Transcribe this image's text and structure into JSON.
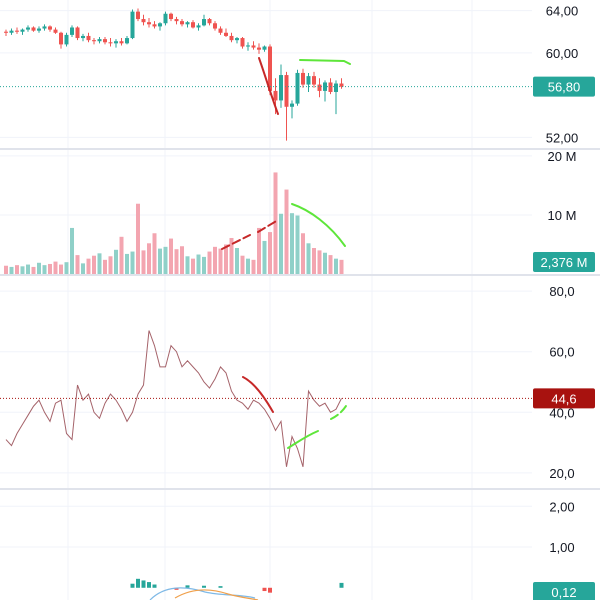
{
  "colors": {
    "up": "#26a69a",
    "down": "#ef5350",
    "up_soft": "#8fd0c8",
    "down_soft": "#f3a5b0",
    "grid": "#f0f3fa",
    "separator": "#e0e3eb",
    "rsi_line": "#a5636a",
    "annotation_red": "#c62828",
    "annotation_green": "#5ee63a",
    "price_badge": "#26a69a",
    "rsi_badge": "#a8120f",
    "macd_badge": "#26a69a"
  },
  "chart_data": [
    {
      "type": "candlestick",
      "yticks": [
        "64,00",
        "60,00",
        "52,00"
      ],
      "ylim": [
        51,
        65
      ],
      "last_value_label": "56,80",
      "last_value": 56.8,
      "candles": [
        [
          62.0,
          62.2,
          61.6,
          61.9
        ],
        [
          61.9,
          62.3,
          61.7,
          62.1
        ],
        [
          62.1,
          62.4,
          61.8,
          62.0
        ],
        [
          62.0,
          62.3,
          61.7,
          62.2
        ],
        [
          62.2,
          62.6,
          62.0,
          62.4
        ],
        [
          62.4,
          62.5,
          62.0,
          62.1
        ],
        [
          62.1,
          62.5,
          61.9,
          62.3
        ],
        [
          62.3,
          62.7,
          62.1,
          62.5
        ],
        [
          62.5,
          62.6,
          62.0,
          62.2
        ],
        [
          62.2,
          62.4,
          61.8,
          61.9
        ],
        [
          61.9,
          62.0,
          60.4,
          60.8
        ],
        [
          60.8,
          61.9,
          60.6,
          61.7
        ],
        [
          61.7,
          62.6,
          61.5,
          62.4
        ],
        [
          62.4,
          62.5,
          61.2,
          61.4
        ],
        [
          61.4,
          61.8,
          61.1,
          61.6
        ],
        [
          61.6,
          61.9,
          61.0,
          61.2
        ],
        [
          61.2,
          61.4,
          60.8,
          61.1
        ],
        [
          61.1,
          61.5,
          60.9,
          61.3
        ],
        [
          61.3,
          61.5,
          60.8,
          61.0
        ],
        [
          61.0,
          61.4,
          60.6,
          60.9
        ],
        [
          60.9,
          61.3,
          60.5,
          61.1
        ],
        [
          61.1,
          61.4,
          60.7,
          60.9
        ],
        [
          60.9,
          61.6,
          60.8,
          61.4
        ],
        [
          61.4,
          64.1,
          61.3,
          63.9
        ],
        [
          63.9,
          64.2,
          63.0,
          63.2
        ],
        [
          63.2,
          63.6,
          62.6,
          62.9
        ],
        [
          62.9,
          63.3,
          62.4,
          62.7
        ],
        [
          62.7,
          63.0,
          62.3,
          62.5
        ],
        [
          62.5,
          62.9,
          62.1,
          62.8
        ],
        [
          62.8,
          63.9,
          62.6,
          63.7
        ],
        [
          63.7,
          63.8,
          63.0,
          63.2
        ],
        [
          63.2,
          63.4,
          62.7,
          63.0
        ],
        [
          63.0,
          63.2,
          62.5,
          62.7
        ],
        [
          62.7,
          63.0,
          62.4,
          62.9
        ],
        [
          62.9,
          63.1,
          62.3,
          62.4
        ],
        [
          62.4,
          62.8,
          62.1,
          62.6
        ],
        [
          62.6,
          63.6,
          62.5,
          63.2
        ],
        [
          63.2,
          63.3,
          62.6,
          62.8
        ],
        [
          62.8,
          63.0,
          62.1,
          62.3
        ],
        [
          62.3,
          62.5,
          61.7,
          61.9
        ],
        [
          61.9,
          62.3,
          61.5,
          61.6
        ],
        [
          61.6,
          61.9,
          61.0,
          61.2
        ],
        [
          61.2,
          61.5,
          60.9,
          61.4
        ],
        [
          61.4,
          61.5,
          60.4,
          60.6
        ],
        [
          60.6,
          61.0,
          60.2,
          60.7
        ],
        [
          60.7,
          61.1,
          60.3,
          60.5
        ],
        [
          60.5,
          60.9,
          59.9,
          60.3
        ],
        [
          60.3,
          60.7,
          60.1,
          60.6
        ],
        [
          60.6,
          60.8,
          56.0,
          56.4
        ],
        [
          56.4,
          57.6,
          54.2,
          55.5
        ],
        [
          55.5,
          58.9,
          54.8,
          57.9
        ],
        [
          57.9,
          58.2,
          51.7,
          54.9
        ],
        [
          54.9,
          55.5,
          53.8,
          55.2
        ],
        [
          55.2,
          58.4,
          55.0,
          58.1
        ],
        [
          58.1,
          58.5,
          56.7,
          57.0
        ],
        [
          57.0,
          58.1,
          56.3,
          57.8
        ],
        [
          57.8,
          58.2,
          56.7,
          57.0
        ],
        [
          57.0,
          57.6,
          55.8,
          56.4
        ],
        [
          56.4,
          57.4,
          55.4,
          57.2
        ],
        [
          57.2,
          57.6,
          56.1,
          56.3
        ],
        [
          56.3,
          57.4,
          54.2,
          57.1
        ],
        [
          57.1,
          57.6,
          56.6,
          56.8
        ]
      ]
    },
    {
      "type": "bar",
      "yticks": [
        "20 M",
        "10 M"
      ],
      "ylim": [
        0,
        21
      ],
      "last_value_label": "2,376 M",
      "values": [
        1.4,
        1.2,
        1.5,
        1.3,
        1.6,
        1.2,
        1.9,
        1.5,
        1.7,
        2.1,
        1.6,
        2.0,
        7.8,
        3.2,
        1.8,
        2.6,
        3.1,
        3.5,
        2.4,
        3.0,
        4.1,
        6.3,
        3.4,
        3.8,
        11.9,
        4.0,
        5.2,
        6.9,
        4.3,
        4.6,
        6.0,
        4.2,
        4.7,
        3.0,
        2.6,
        3.3,
        2.9,
        3.8,
        4.6,
        4.3,
        5.0,
        6.1,
        4.4,
        3.1,
        2.6,
        2.4,
        7.8,
        5.6,
        7.1,
        17.2,
        10.2,
        14.3,
        10.3,
        9.9,
        6.9,
        5.2,
        4.4,
        4.0,
        3.6,
        3.2,
        2.6,
        2.4
      ],
      "directions": [
        -1,
        1,
        -1,
        1,
        1,
        -1,
        1,
        1,
        -1,
        -1,
        -1,
        1,
        1,
        -1,
        1,
        -1,
        -1,
        1,
        -1,
        -1,
        1,
        -1,
        1,
        1,
        -1,
        -1,
        -1,
        -1,
        1,
        1,
        -1,
        -1,
        -1,
        1,
        -1,
        1,
        1,
        -1,
        -1,
        -1,
        -1,
        -1,
        1,
        -1,
        1,
        -1,
        -1,
        1,
        -1,
        -1,
        1,
        -1,
        1,
        1,
        -1,
        1,
        -1,
        -1,
        1,
        -1,
        1,
        -1
      ]
    },
    {
      "type": "line",
      "yticks": [
        "80,0",
        "60,0",
        "40,0",
        "20,0"
      ],
      "ylim": [
        15,
        85
      ],
      "last_value_label": "44,6",
      "last_value": 44.6,
      "values": [
        31,
        29,
        33,
        36,
        39,
        42,
        44,
        40,
        37,
        43,
        44,
        33,
        31,
        49,
        44,
        46,
        40,
        38,
        43,
        46,
        44,
        41,
        37,
        40,
        46,
        49,
        67,
        62,
        55,
        55,
        62,
        60,
        55,
        57,
        55,
        53,
        50,
        48,
        51,
        55,
        53,
        47,
        44,
        43,
        41,
        44,
        43,
        41,
        38,
        34,
        37,
        22,
        32,
        28,
        22,
        47,
        44,
        42,
        43,
        40,
        41,
        44.6
      ]
    },
    {
      "type": "bar",
      "yticks": [
        "2,00",
        "1,00"
      ],
      "ylim": [
        -0.3,
        2.4
      ],
      "last_value_label": "0,12",
      "last_value": 0.12
    }
  ]
}
